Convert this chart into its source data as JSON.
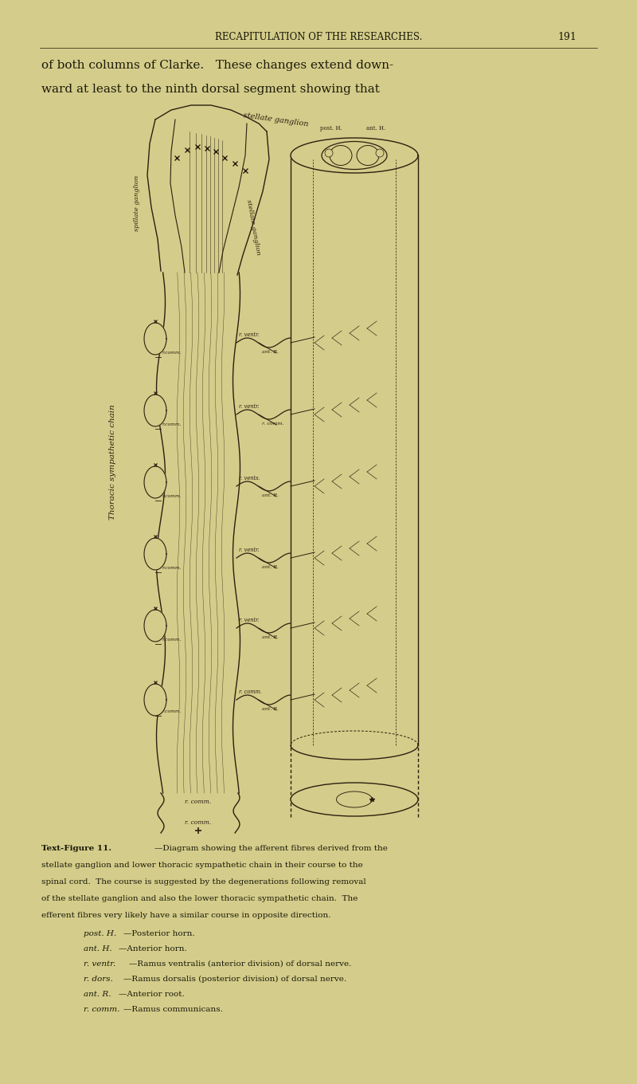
{
  "bg_color": "#d4cc8a",
  "page_width": 8.0,
  "page_height": 13.6,
  "header_text": "RECAPITULATION OF THE RESEARCHES.",
  "header_page_num": "191",
  "body_text_line1": "of both columns of Clarke.   These changes extend down-",
  "body_text_line2": "ward at least to the ninth dorsal segment showing that",
  "legend_lines": [
    "post. H.—Posterior horn.",
    "ant. H.—Anterior horn.",
    "r. ventr.—Ramus ventralis (anterior division) of dorsal nerve.",
    "r. dors.—Ramus dorsalis (posterior division) of dorsal nerve.",
    "ant. R.—Anterior root.",
    "r. comm.—Ramus communicans."
  ],
  "text_color": "#1a1a0a",
  "ink_color": "#2a2010"
}
